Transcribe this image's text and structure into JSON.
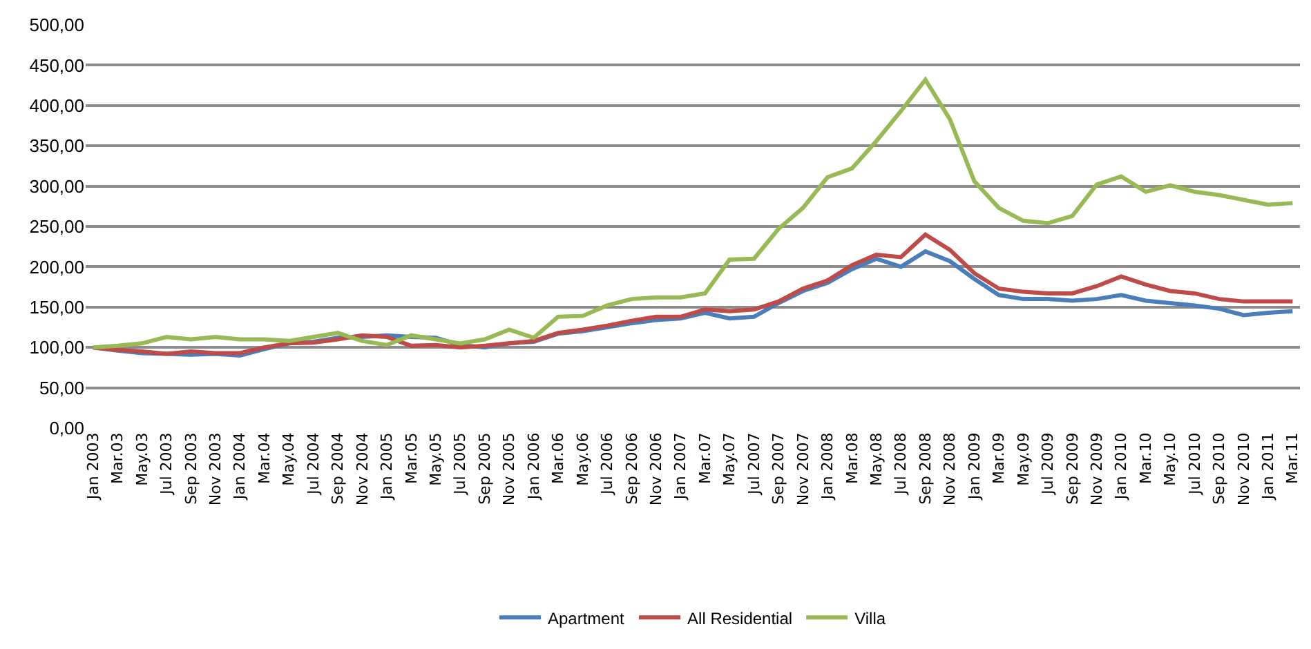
{
  "chart_data": {
    "type": "line",
    "categories": [
      "Jan 2003",
      "Mar.03",
      "May.03",
      "Jul 2003",
      "Sep 2003",
      "Nov 2003",
      "Jan 2004",
      "Mar.04",
      "May.04",
      "Jul 2004",
      "Sep 2004",
      "Nov 2004",
      "Jan 2005",
      "Mar.05",
      "May.05",
      "Jul 2005",
      "Sep 2005",
      "Nov 2005",
      "Jan 2006",
      "Mar.06",
      "May.06",
      "Jul 2006",
      "Sep 2006",
      "Nov 2006",
      "Jan 2007",
      "Mar.07",
      "May.07",
      "Jul 2007",
      "Sep 2007",
      "Nov 2007",
      "Jan 2008",
      "Mar.08",
      "May.08",
      "Jul 2008",
      "Sep 2008",
      "Nov 2008",
      "Jan 2009",
      "Mar.09",
      "May.09",
      "Jul 2009",
      "Sep 2009",
      "Nov 2009",
      "Jan 2010",
      "Mar.10",
      "May.10",
      "Jul 2010",
      "Sep 2010",
      "Nov 2010",
      "Jan 2011",
      "Mar.11"
    ],
    "series": [
      {
        "name": "Apartment",
        "color": "#4a7ebb",
        "values": [
          100,
          96,
          93,
          92,
          91,
          92,
          90,
          98,
          105,
          107,
          112,
          113,
          115,
          113,
          112,
          103,
          100,
          105,
          107,
          117,
          120,
          125,
          130,
          134,
          136,
          143,
          136,
          138,
          155,
          170,
          180,
          197,
          210,
          200,
          219,
          207,
          185,
          165,
          160,
          160,
          158,
          160,
          165,
          158,
          155,
          152,
          148,
          140,
          143,
          145
        ]
      },
      {
        "name": "All Residential",
        "color": "#be4b48",
        "values": [
          100,
          97,
          95,
          92,
          95,
          93,
          93,
          100,
          105,
          106,
          110,
          115,
          113,
          102,
          103,
          100,
          102,
          105,
          108,
          118,
          122,
          127,
          133,
          138,
          138,
          147,
          145,
          147,
          157,
          173,
          183,
          202,
          215,
          212,
          240,
          221,
          192,
          173,
          169,
          167,
          167,
          176,
          188,
          178,
          170,
          167,
          160,
          157,
          157,
          157
        ]
      },
      {
        "name": "Villa",
        "color": "#98b954",
        "values": [
          100,
          102,
          105,
          113,
          110,
          113,
          110,
          110,
          108,
          113,
          118,
          108,
          103,
          115,
          110,
          105,
          110,
          122,
          112,
          138,
          139,
          152,
          160,
          162,
          162,
          167,
          209,
          210,
          247,
          273,
          311,
          322,
          356,
          393,
          432,
          383,
          306,
          273,
          257,
          254,
          263,
          302,
          312,
          293,
          301,
          293,
          289,
          283,
          277,
          279
        ]
      }
    ],
    "ylim": [
      0,
      500
    ],
    "yticks": [
      {
        "value": 0,
        "label": "0,00"
      },
      {
        "value": 50,
        "label": "50,00"
      },
      {
        "value": 100,
        "label": "100,00"
      },
      {
        "value": 150,
        "label": "150,00"
      },
      {
        "value": 200,
        "label": "200,00"
      },
      {
        "value": 250,
        "label": "250,00"
      },
      {
        "value": 300,
        "label": "300,00"
      },
      {
        "value": 350,
        "label": "350,00"
      },
      {
        "value": 400,
        "label": "400,00"
      },
      {
        "value": 450,
        "label": "450,00"
      },
      {
        "value": 500,
        "label": "500,00"
      }
    ],
    "grid": "y",
    "legend": "bottom",
    "marker": "none",
    "line_style": "solid"
  }
}
